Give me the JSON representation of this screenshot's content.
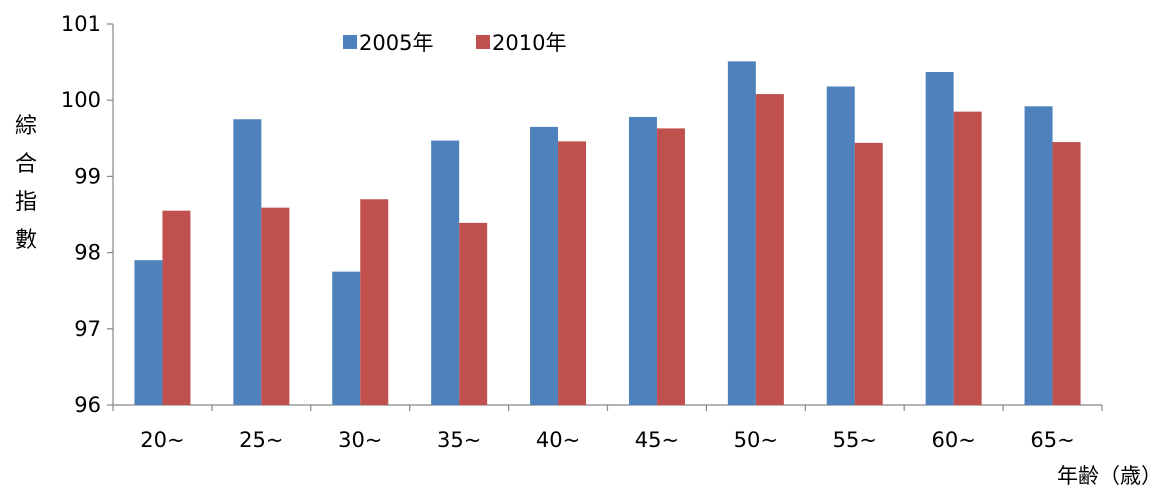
{
  "chart_data": {
    "type": "bar",
    "categories": [
      "20~",
      "25~",
      "30~",
      "35~",
      "40~",
      "45~",
      "50~",
      "55~",
      "60~",
      "65~"
    ],
    "series": [
      {
        "name": "2005年",
        "color": "#4F81BD",
        "values": [
          97.9,
          99.75,
          97.75,
          99.47,
          99.65,
          99.78,
          100.51,
          100.18,
          100.37,
          99.92
        ]
      },
      {
        "name": "2010年",
        "color": "#C0504D",
        "values": [
          98.55,
          98.59,
          98.7,
          98.39,
          99.46,
          99.63,
          100.08,
          99.44,
          99.85,
          99.45
        ]
      }
    ],
    "xlabel": "年齢（歳）",
    "ylabel": [
      "綜",
      "合",
      "指",
      "數"
    ],
    "ylim": [
      96,
      101
    ],
    "yticks": [
      "96",
      "97",
      "98",
      "99",
      "100",
      "101"
    ],
    "legend_position": "top",
    "grid": false
  }
}
